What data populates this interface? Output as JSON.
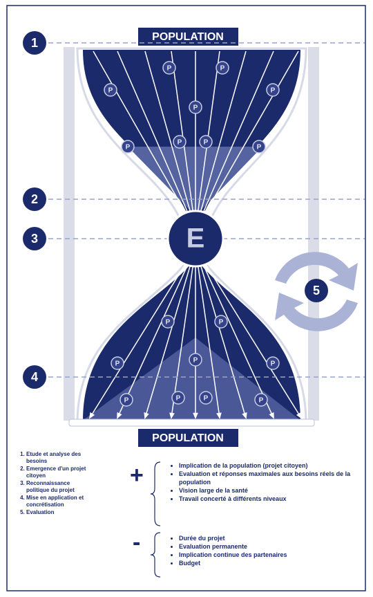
{
  "header": {
    "top_label": "POPULATION",
    "bottom_label": "POPULATION"
  },
  "markers": {
    "population": "P",
    "center": "E"
  },
  "step_numbers": [
    "1",
    "2",
    "3",
    "4",
    "5"
  ],
  "steps": [
    "Etude et analyse des besoins",
    "Emergence d'un projet citoyen",
    "Reconnaissance politique du projet",
    "Mise en application et concrétisation",
    "Evaluation"
  ],
  "advantages": {
    "symbol": "+",
    "items": [
      "Implication de la population (projet citoyen)",
      "Evaluation et réponses maximales aux besoins réels de la population",
      "Vision large de la santé",
      "Travail concerté à différents niveaux"
    ]
  },
  "disadvantages": {
    "symbol": "-",
    "items": [
      "Durée du projet",
      "Evaluation permanente",
      "Implication continue des partenaires",
      "Budget"
    ]
  }
}
